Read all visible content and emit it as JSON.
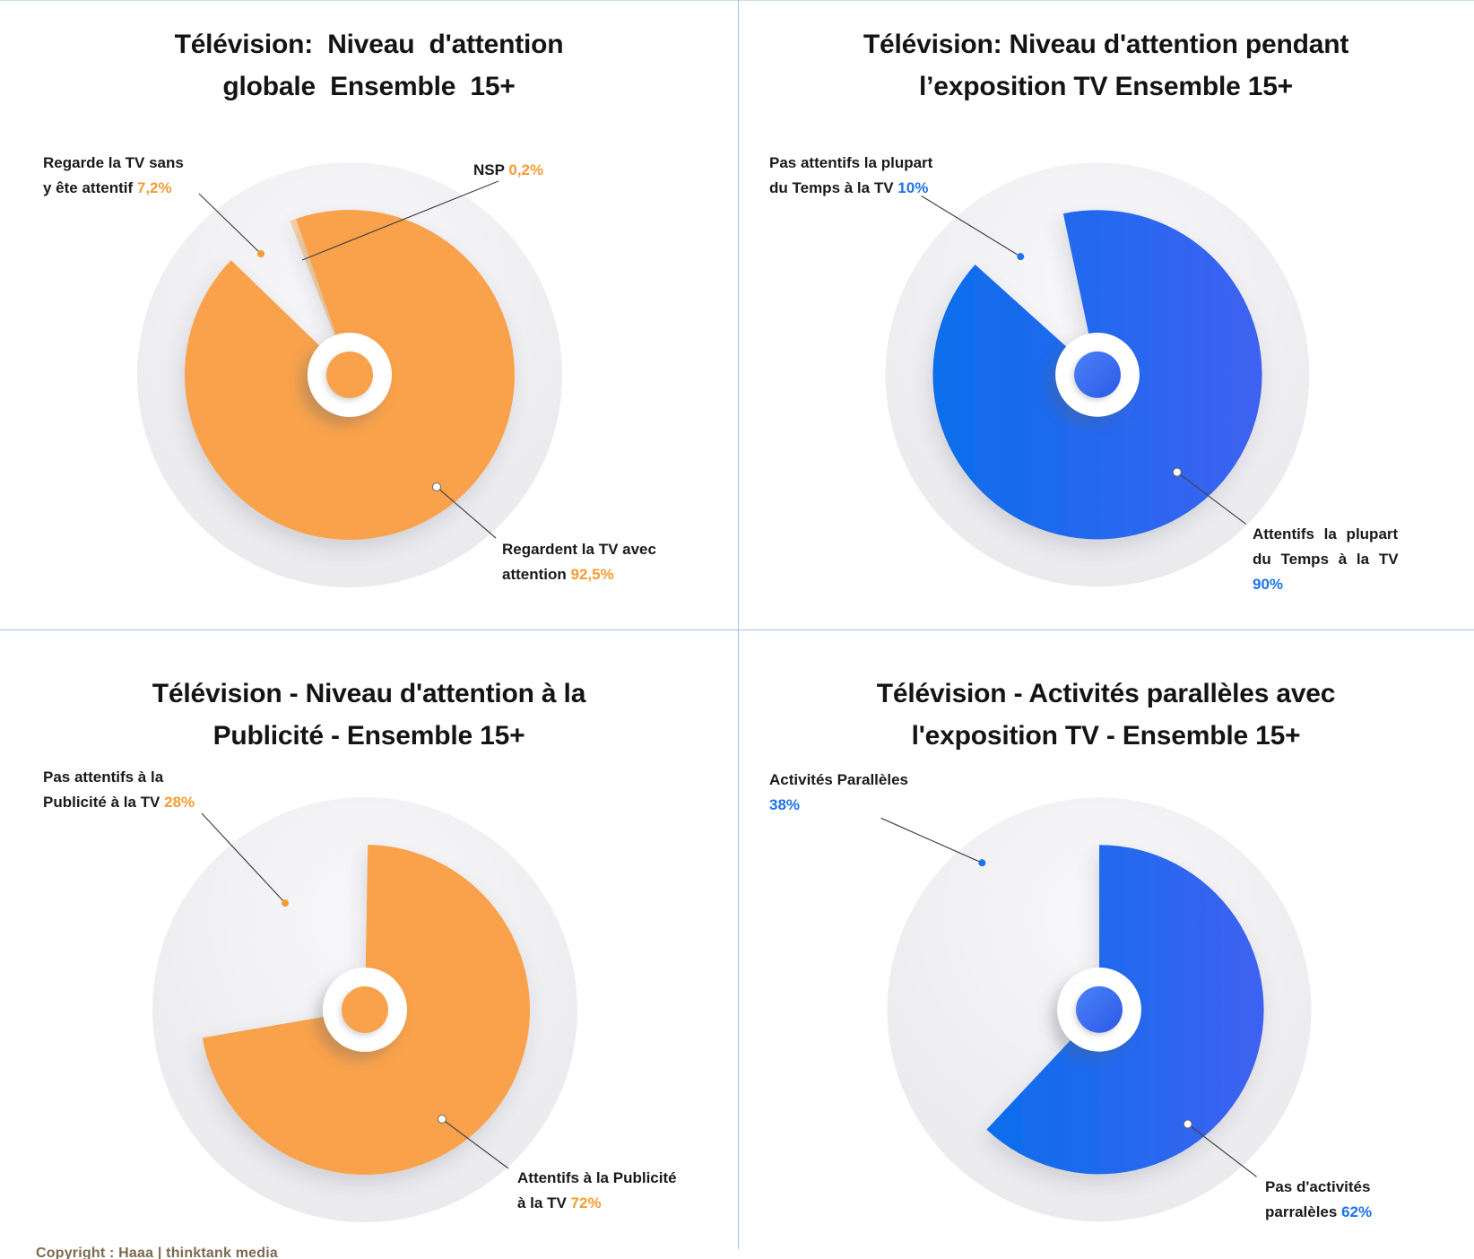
{
  "page": {
    "copyright": "Copyright : Haaa | thinktank media"
  },
  "colors": {
    "orange": "#F9A24C",
    "orange_light": "#FBD3A8",
    "blue_start": "#0B6EEB",
    "blue_end": "#3E62F1",
    "blue_dot_start": "#4C82F6",
    "blue_dot_end": "#2B59E8",
    "accent_orange": "#F59B33",
    "accent_blue": "#1D73E8",
    "divider": "#9DC3E6",
    "leader": "#444444"
  },
  "chart_data": [
    {
      "type": "pie",
      "title": "Télévision: Niveau d'attention globale Ensemble 15+",
      "unit": "%",
      "slices": [
        {
          "label": "Regardent la TV avec attention",
          "value": 92.5,
          "role": "main"
        },
        {
          "label": "Regarde la TV sans y ête attentif",
          "value": 7.2,
          "role": "gap"
        },
        {
          "label": "NSP",
          "value": 0.2,
          "role": "sliver"
        }
      ]
    },
    {
      "type": "pie",
      "title": "Télévision: Niveau d'attention pendant l’exposition TV Ensemble 15+",
      "unit": "%",
      "slices": [
        {
          "label": "Attentifs la plupart du Temps à la TV",
          "value": 90,
          "role": "main"
        },
        {
          "label": "Pas attentifs la plupart du Temps à la TV",
          "value": 10,
          "role": "gap"
        }
      ]
    },
    {
      "type": "pie",
      "title": "Télévision - Niveau d'attention à la Publicité - Ensemble 15+",
      "unit": "%",
      "slices": [
        {
          "label": "Attentifs à la Publicité à la TV",
          "value": 72,
          "role": "main"
        },
        {
          "label": "Pas attentifs à la Publicité à la TV",
          "value": 28,
          "role": "gap"
        }
      ]
    },
    {
      "type": "pie",
      "title": "Télévision - Activités parallèles avec l'exposition TV - Ensemble 15+",
      "unit": "%",
      "slices": [
        {
          "label": "Pas d'activités parralèles",
          "value": 62,
          "role": "main"
        },
        {
          "label": "Activités Parallèles",
          "value": 38,
          "role": "gap"
        }
      ]
    }
  ],
  "quadrants": [
    {
      "title": "Télévision: Niveau d'attention\nglobale Ensemble 15+",
      "theme": "orange",
      "labels": [
        {
          "text": "Regarde la TV sans\ny ête attentif ",
          "value": "7,2%"
        },
        {
          "text": "NSP ",
          "value": "0,2%"
        },
        {
          "text": "Regardent la TV avec\nattention ",
          "value": "92,5%"
        }
      ]
    },
    {
      "title": "Télévision: Niveau d'attention pendant\nl’exposition TV Ensemble 15+",
      "theme": "blue",
      "labels": [
        {
          "text": "Pas attentifs la plupart\ndu Temps à la TV ",
          "value": "10%"
        },
        {
          "text": "Attentifs la plupart\ndu Temps à la TV ",
          "value": "90%"
        }
      ]
    },
    {
      "title": "Télévision - Niveau d'attention à la\nPublicité - Ensemble 15+",
      "theme": "orange",
      "labels": [
        {
          "text": "Pas attentifs à la\nPublicité à la TV ",
          "value": "28%"
        },
        {
          "text": "Attentifs à la Publicité\nà la TV ",
          "value": "72%"
        }
      ]
    },
    {
      "title": "Télévision - Activités parallèles avec\nl'exposition TV - Ensemble 15+",
      "theme": "blue",
      "labels": [
        {
          "text": "Activités Parallèles\n",
          "value": "38%"
        },
        {
          "text": "Pas d'activités\nparralèles ",
          "value": "62%"
        }
      ]
    }
  ]
}
